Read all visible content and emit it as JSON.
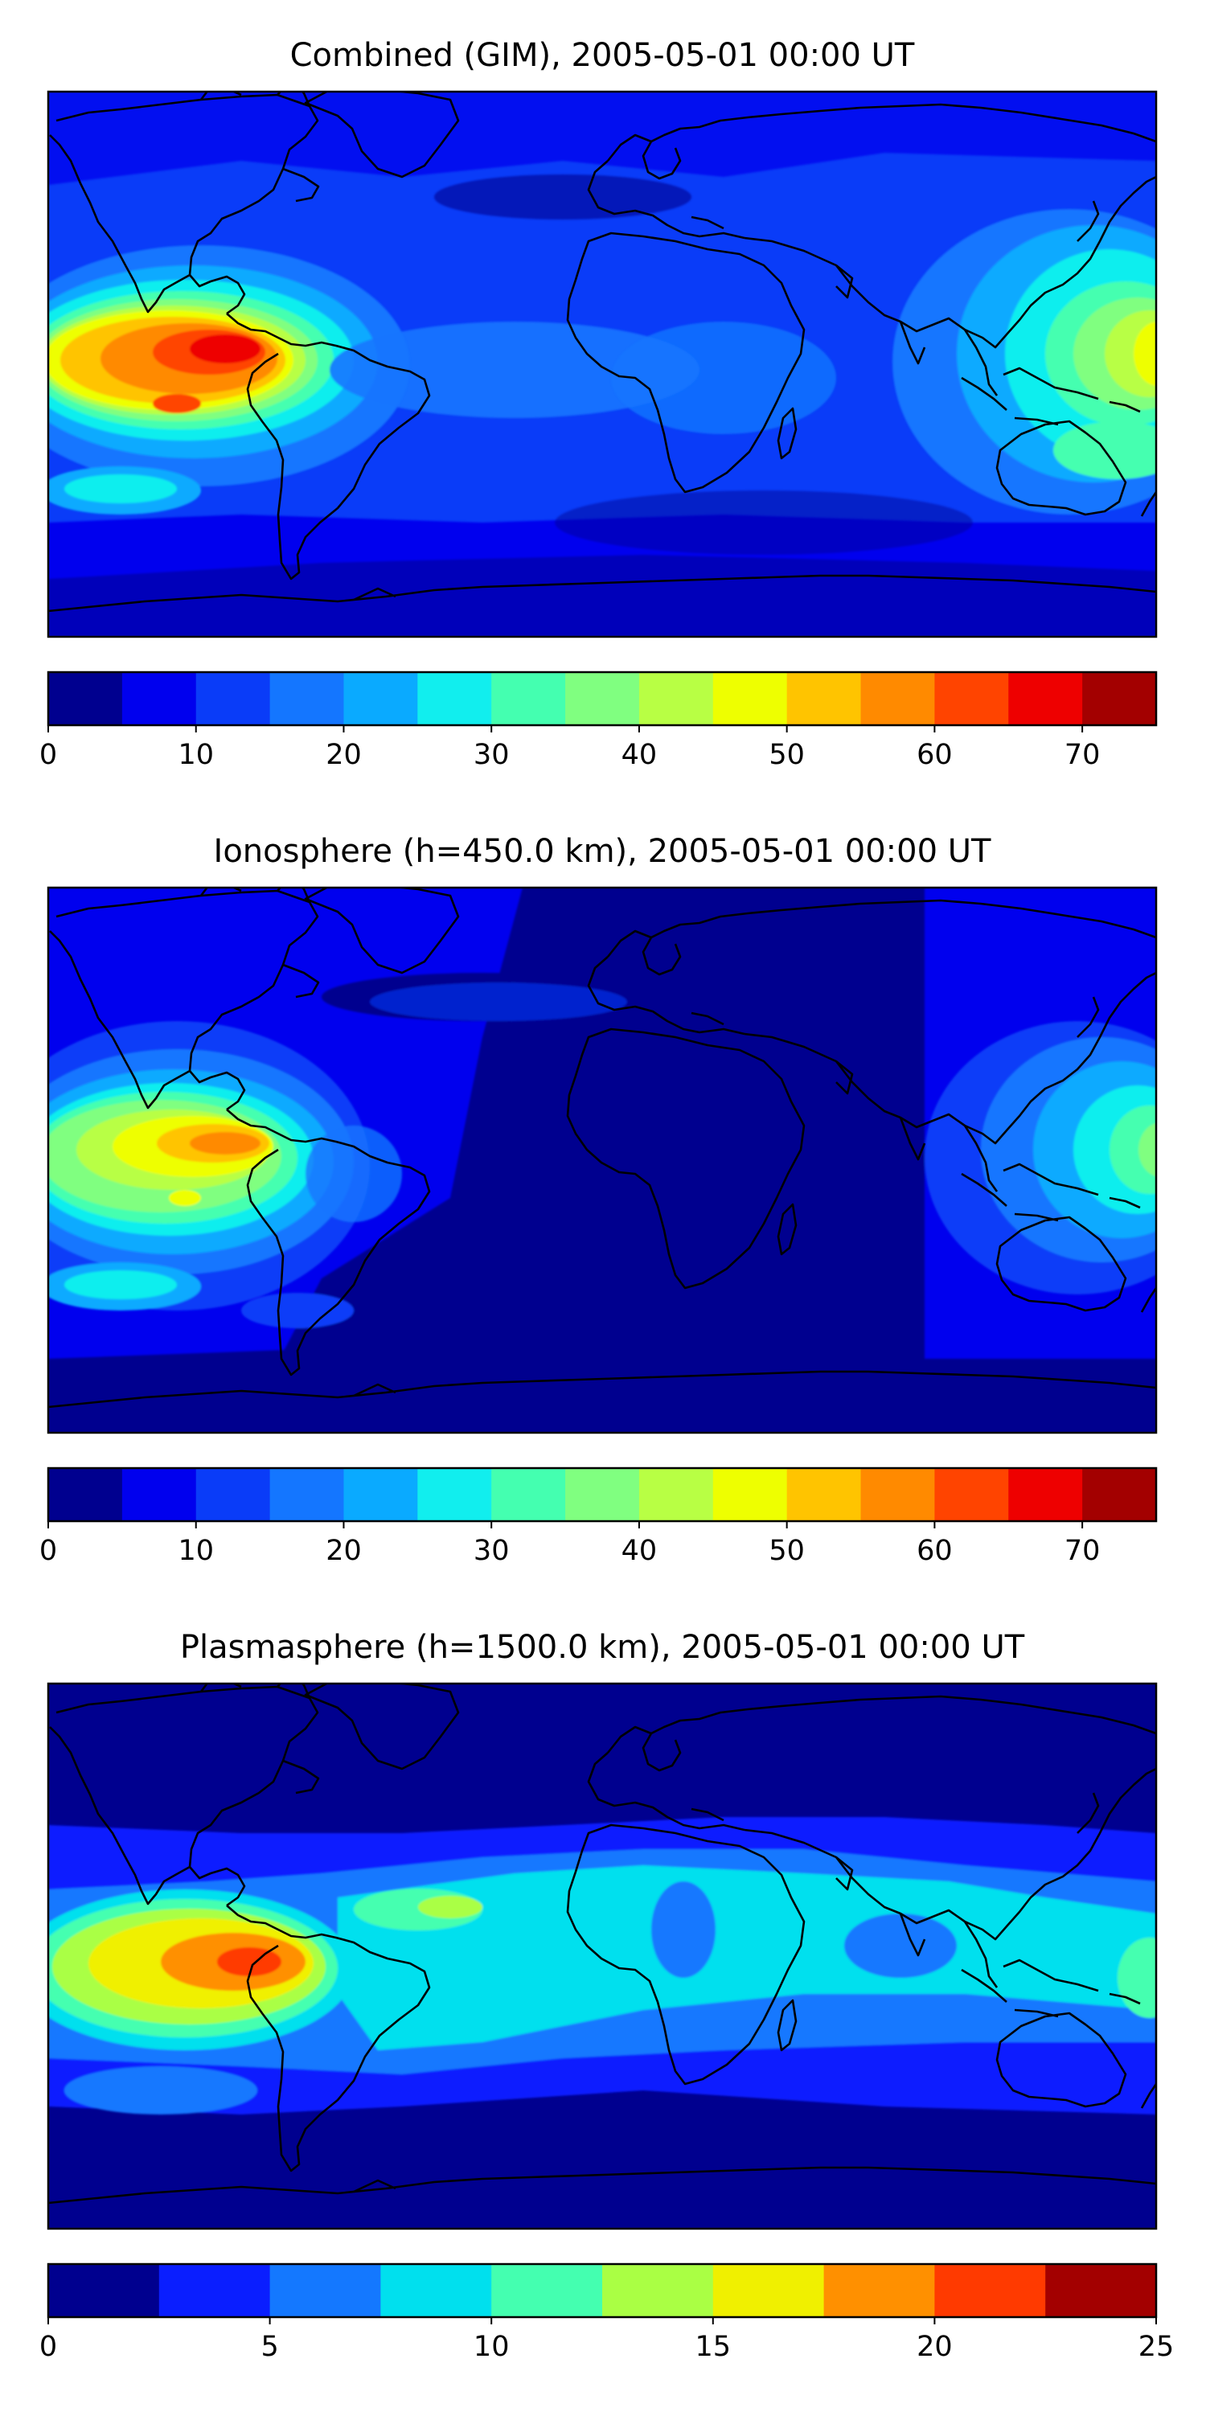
{
  "figure": {
    "panels": [
      {
        "title": "Combined (GIM), 2005-05-01 00:00 UT",
        "colorbar": {
          "levels": [
            0,
            5,
            10,
            15,
            20,
            25,
            30,
            35,
            40,
            45,
            50,
            55,
            60,
            65,
            70,
            75
          ],
          "tick_labels": [
            "0",
            "10",
            "20",
            "30",
            "40",
            "50",
            "60",
            "70"
          ],
          "tick_values": [
            0,
            10,
            20,
            30,
            40,
            50,
            60,
            70
          ],
          "colors": [
            "#00008f",
            "#0000ee",
            "#0a3cf8",
            "#1476ff",
            "#0aaaff",
            "#11eeee",
            "#44ffb0",
            "#80ff80",
            "#b8ff44",
            "#eeff00",
            "#ffc400",
            "#ff8a00",
            "#ff4400",
            "#ee0000",
            "#a30000"
          ]
        }
      },
      {
        "title": "Ionosphere  (h=450.0 km), 2005-05-01 00:00 UT",
        "colorbar": {
          "levels": [
            0,
            5,
            10,
            15,
            20,
            25,
            30,
            35,
            40,
            45,
            50,
            55,
            60,
            65,
            70,
            75
          ],
          "tick_labels": [
            "0",
            "10",
            "20",
            "30",
            "40",
            "50",
            "60",
            "70"
          ],
          "tick_values": [
            0,
            10,
            20,
            30,
            40,
            50,
            60,
            70
          ],
          "colors": [
            "#00008f",
            "#0000ee",
            "#0a3cf8",
            "#1476ff",
            "#0aaaff",
            "#11eeee",
            "#44ffb0",
            "#80ff80",
            "#b8ff44",
            "#eeff00",
            "#ffc400",
            "#ff8a00",
            "#ff4400",
            "#ee0000",
            "#a30000"
          ]
        }
      },
      {
        "title": "Plasmasphere (h=1500.0 km), 2005-05-01 00:00 UT",
        "colorbar": {
          "levels": [
            0,
            2.5,
            5,
            7.5,
            10,
            12.5,
            15,
            17.5,
            20,
            22.5,
            25
          ],
          "tick_labels": [
            "0",
            "5",
            "10",
            "15",
            "20",
            "25"
          ],
          "tick_values": [
            0,
            5,
            10,
            15,
            20,
            25
          ],
          "colors": [
            "#00008f",
            "#0a1eff",
            "#1478ff",
            "#00e0ee",
            "#44ffb0",
            "#aaff44",
            "#f0f000",
            "#ff9000",
            "#ff3a00",
            "#a30000"
          ]
        }
      }
    ]
  },
  "chart_data": [
    {
      "type": "heatmap",
      "title": "Combined (GIM), 2005-05-01 00:00 UT",
      "xlabel": "",
      "ylabel": "",
      "value_range": [
        0,
        75
      ],
      "features": [
        {
          "region": "eastern Pacific, near equator",
          "peak_value": 70
        },
        {
          "region": "western Pacific / Southeast Asia",
          "peak_value": 45
        },
        {
          "region": "Atlantic, Africa, Europe",
          "typical_value": 10
        },
        {
          "region": "southern high latitudes",
          "typical_value": 5
        }
      ]
    },
    {
      "type": "heatmap",
      "title": "Ionosphere  (h=450.0 km), 2005-05-01 00:00 UT",
      "xlabel": "",
      "ylabel": "",
      "value_range": [
        0,
        75
      ],
      "features": [
        {
          "region": "eastern Pacific, near equator",
          "peak_value": 55
        },
        {
          "region": "western Pacific / Southeast Asia",
          "peak_value": 35
        },
        {
          "region": "Africa, Indian Ocean",
          "typical_value": 5
        }
      ]
    },
    {
      "type": "heatmap",
      "title": "Plasmasphere (h=1500.0 km), 2005-05-01 00:00 UT",
      "xlabel": "",
      "ylabel": "",
      "value_range": [
        0,
        25
      ],
      "features": [
        {
          "region": "eastern Pacific, near equator",
          "peak_value": 20
        },
        {
          "region": "Africa, South Asia band",
          "typical_value": 8
        },
        {
          "region": "high latitudes",
          "typical_value": 2
        }
      ]
    }
  ]
}
